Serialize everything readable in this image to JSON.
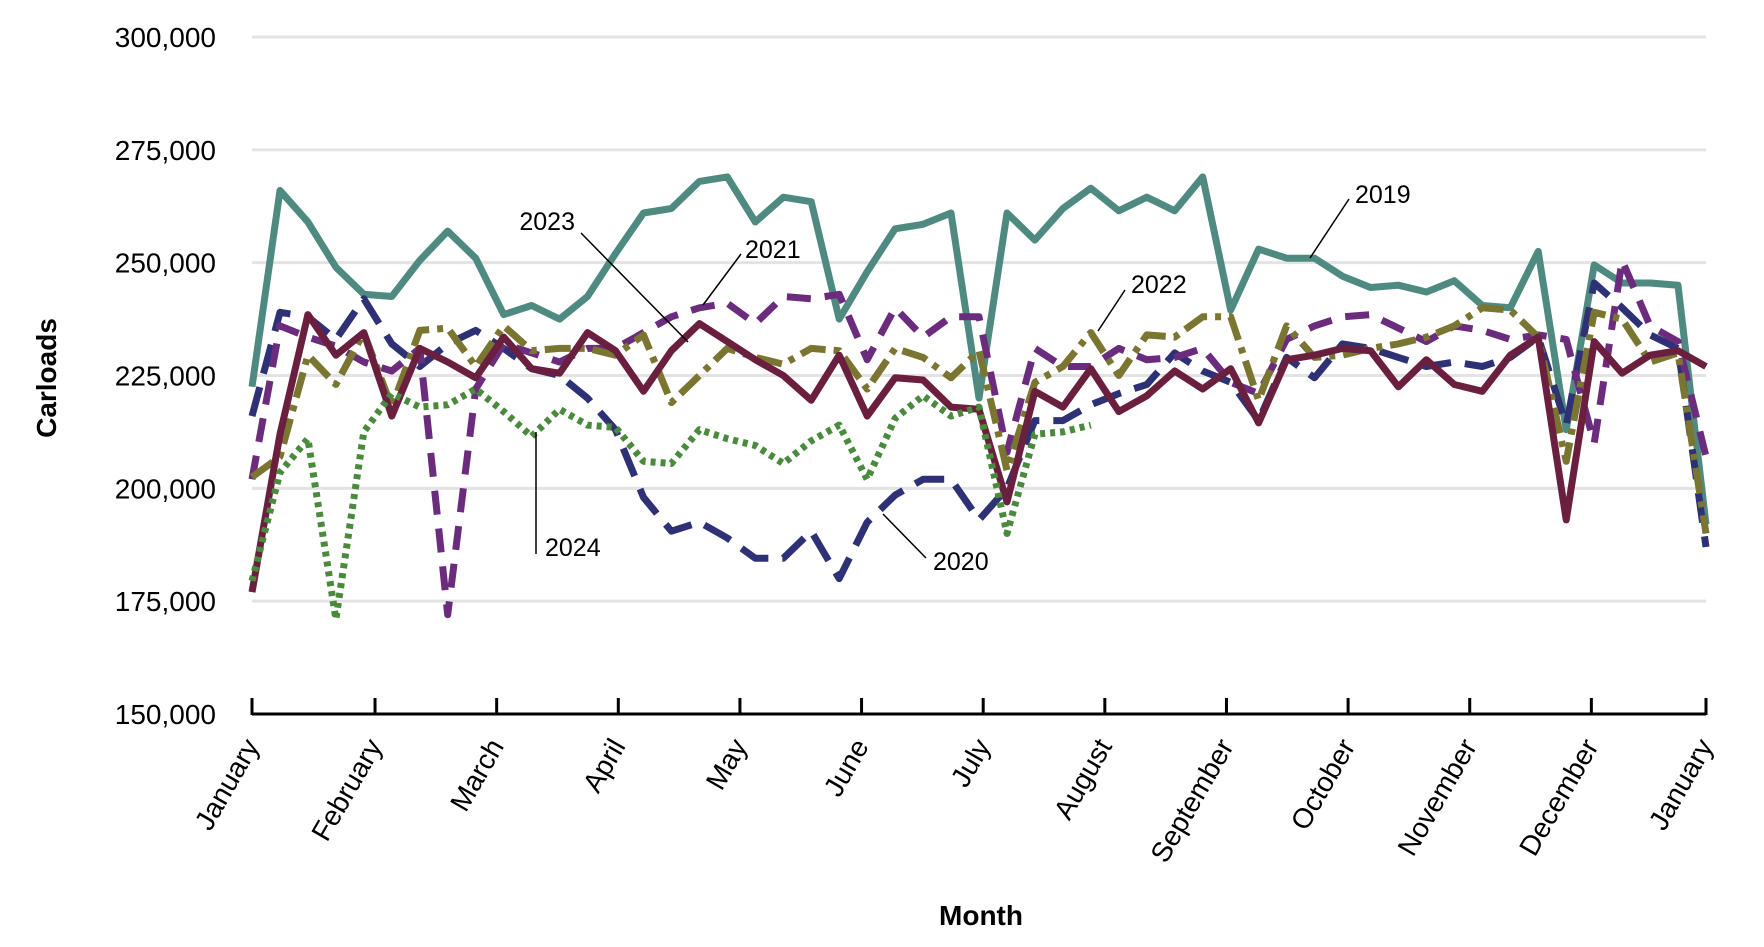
{
  "chart_data": {
    "type": "line",
    "xlabel": "Month",
    "ylabel": "Carloads",
    "ylim": [
      150000,
      300000
    ],
    "yticks": [
      150000,
      175000,
      200000,
      225000,
      250000,
      275000,
      300000
    ],
    "ytick_labels": [
      "150,000",
      "175,000",
      "200,000",
      "225,000",
      "250,000",
      "275,000",
      "300,000"
    ],
    "xlim": [
      1,
      53
    ],
    "months": [
      {
        "label": "January",
        "week": 1
      },
      {
        "label": "February",
        "week": 5.4
      },
      {
        "label": "March",
        "week": 9.75
      },
      {
        "label": "April",
        "week": 14.1
      },
      {
        "label": "May",
        "week": 18.45
      },
      {
        "label": "June",
        "week": 22.8
      },
      {
        "label": "July",
        "week": 27.15
      },
      {
        "label": "August",
        "week": 31.5
      },
      {
        "label": "September",
        "week": 35.85
      },
      {
        "label": "October",
        "week": 40.2
      },
      {
        "label": "November",
        "week": 44.55
      },
      {
        "label": "December",
        "week": 48.9
      },
      {
        "label": "January",
        "week": 53
      }
    ],
    "grid": true,
    "legend": "none",
    "series": [
      {
        "name": "2019",
        "color": "#4f8a80",
        "dash": "solid",
        "x": [
          1,
          2,
          3,
          4,
          5,
          6,
          7,
          8,
          9,
          10,
          11,
          12,
          13,
          14,
          15,
          16,
          17,
          18,
          19,
          20,
          21,
          22,
          23,
          24,
          25,
          26,
          27,
          28,
          29,
          30,
          31,
          32,
          33,
          34,
          35,
          36,
          37,
          38,
          39,
          40,
          41,
          42,
          43,
          44,
          45,
          46,
          47,
          48,
          49,
          50,
          51,
          52,
          53
        ],
        "values": [
          222500,
          266000,
          259000,
          249000,
          243000,
          242500,
          250500,
          257000,
          251000,
          238500,
          240500,
          237500,
          242500,
          252000,
          261000,
          262000,
          268000,
          269000,
          259000,
          264500,
          263500,
          237500,
          248000,
          257500,
          258500,
          261000,
          220000,
          261000,
          255000,
          262000,
          266500,
          261500,
          264500,
          261500,
          269000,
          239500,
          253000,
          251000,
          251000,
          247000,
          244500,
          245000,
          243500,
          246000,
          240500,
          240000,
          252500,
          213000,
          249500,
          245500,
          245500,
          245000,
          192000
        ]
      },
      {
        "name": "2020",
        "color": "#2e3175",
        "dash": "30,14",
        "x": [
          1,
          2,
          3,
          4,
          5,
          6,
          7,
          8,
          9,
          10,
          11,
          12,
          13,
          14,
          15,
          16,
          17,
          18,
          19,
          20,
          21,
          22,
          23,
          24,
          25,
          26,
          27,
          28,
          29,
          30,
          31,
          32,
          33,
          34,
          35,
          36,
          37,
          38,
          39,
          40,
          41,
          42,
          43,
          44,
          45,
          46,
          47,
          48,
          49,
          50,
          51,
          52,
          53
        ],
        "values": [
          216000,
          239000,
          238000,
          233000,
          242000,
          232000,
          227000,
          232000,
          235000,
          231000,
          226500,
          225000,
          220000,
          213000,
          198000,
          190500,
          192500,
          189000,
          184500,
          184500,
          190500,
          180000,
          192500,
          198500,
          202000,
          202000,
          193000,
          200000,
          215000,
          215000,
          218500,
          221000,
          223000,
          230000,
          226000,
          223500,
          215000,
          229000,
          224500,
          232000,
          231000,
          229000,
          227000,
          228000,
          227000,
          229000,
          233500,
          214000,
          245500,
          240000,
          234000,
          231000,
          187000
        ]
      },
      {
        "name": "2021",
        "color": "#6b2c7d",
        "dash": "24,14",
        "x": [
          1,
          2,
          3,
          4,
          5,
          6,
          7,
          8,
          9,
          10,
          11,
          12,
          13,
          14,
          15,
          16,
          17,
          18,
          19,
          20,
          21,
          22,
          23,
          24,
          25,
          26,
          27,
          28,
          29,
          30,
          31,
          32,
          33,
          34,
          35,
          36,
          37,
          38,
          39,
          40,
          41,
          42,
          43,
          44,
          45,
          46,
          47,
          48,
          49,
          50,
          51,
          52,
          53
        ],
        "values": [
          202000,
          236000,
          233500,
          231500,
          228000,
          226000,
          231000,
          172000,
          222000,
          232000,
          230000,
          228000,
          231000,
          231000,
          234500,
          238000,
          240000,
          241000,
          236500,
          242500,
          242000,
          243000,
          228500,
          240000,
          233500,
          238000,
          238000,
          208000,
          231000,
          227000,
          227000,
          231000,
          228500,
          229000,
          231000,
          223500,
          221000,
          233000,
          236000,
          238000,
          238500,
          235500,
          232500,
          236000,
          235000,
          233000,
          234000,
          233000,
          210000,
          250500,
          236000,
          232500,
          207000
        ]
      },
      {
        "name": "2022",
        "color": "#7a7530",
        "dash": "26,8,6,8",
        "x": [
          1,
          2,
          3,
          4,
          5,
          6,
          7,
          8,
          9,
          10,
          11,
          12,
          13,
          14,
          15,
          16,
          17,
          18,
          19,
          20,
          21,
          22,
          23,
          24,
          25,
          26,
          27,
          28,
          29,
          30,
          31,
          32,
          33,
          34,
          35,
          36,
          37,
          38,
          39,
          40,
          41,
          42,
          43,
          44,
          45,
          46,
          47,
          48,
          49,
          50,
          51,
          52,
          53
        ],
        "values": [
          202500,
          207000,
          229500,
          223000,
          234500,
          218000,
          235000,
          235500,
          227000,
          236000,
          230500,
          231000,
          231000,
          229500,
          234000,
          219000,
          225000,
          231000,
          229000,
          227500,
          231000,
          230500,
          222000,
          231000,
          229000,
          224500,
          230500,
          204000,
          223500,
          227000,
          234500,
          225000,
          234000,
          233500,
          238000,
          238000,
          219500,
          236000,
          229000,
          229500,
          231000,
          232000,
          233500,
          236000,
          240000,
          239500,
          233500,
          206000,
          239000,
          237500,
          228000,
          230000,
          190000
        ]
      },
      {
        "name": "2023",
        "color": "#6b1f3e",
        "dash": "solid",
        "x": [
          1,
          2,
          3,
          4,
          5,
          6,
          7,
          8,
          9,
          10,
          11,
          12,
          13,
          14,
          15,
          16,
          17,
          18,
          19,
          20,
          21,
          22,
          23,
          24,
          25,
          26,
          27,
          28,
          29,
          30,
          31,
          32,
          33,
          34,
          35,
          36,
          37,
          38,
          39,
          40,
          41,
          42,
          43,
          44,
          45,
          46,
          47,
          48,
          49,
          50,
          51,
          52,
          53
        ],
        "values": [
          177000,
          212000,
          238500,
          229500,
          234500,
          216000,
          231000,
          228000,
          224500,
          233500,
          226500,
          225500,
          234500,
          230500,
          221500,
          230500,
          236500,
          232500,
          228500,
          225000,
          219500,
          229500,
          216000,
          224500,
          224000,
          218000,
          217500,
          197000,
          221500,
          218000,
          226500,
          217000,
          220500,
          226000,
          222000,
          226500,
          214500,
          228500,
          229500,
          231000,
          230500,
          222500,
          228500,
          223000,
          221500,
          229500,
          233500,
          193000,
          232500,
          225500,
          229500,
          230500,
          227000
        ]
      },
      {
        "name": "2024",
        "color": "#4a8a3c",
        "dash": "5,5",
        "x": [
          1,
          2,
          3,
          4,
          5,
          6,
          7,
          8,
          9,
          10,
          11,
          12,
          13,
          14,
          15,
          16,
          17,
          18,
          19,
          20,
          21,
          22,
          23,
          24,
          25,
          26,
          27,
          28,
          29,
          30,
          31
        ],
        "values": [
          179500,
          203500,
          211000,
          171000,
          212500,
          221000,
          218000,
          218500,
          222000,
          217000,
          211500,
          217500,
          214000,
          213500,
          206000,
          205500,
          213000,
          211000,
          209500,
          205500,
          210500,
          214000,
          202000,
          215500,
          220500,
          216000,
          218000,
          190000,
          212000,
          212500,
          214000
        ]
      }
    ],
    "annotations": [
      {
        "label": "2019"
      },
      {
        "label": "2020"
      },
      {
        "label": "2021"
      },
      {
        "label": "2022"
      },
      {
        "label": "2023"
      },
      {
        "label": "2024"
      }
    ]
  }
}
